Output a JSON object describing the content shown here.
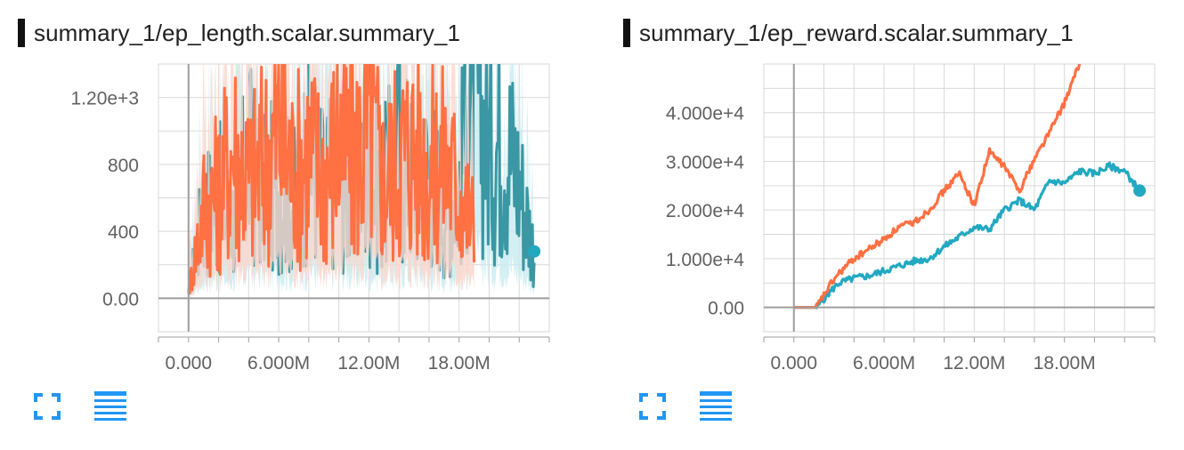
{
  "colors": {
    "series_orange": "#ff7043",
    "series_teal": "#22a9c1",
    "series_teal_dark": "#3a97a3",
    "band_orange": "#fcd6cb",
    "band_teal": "#c8ebf0",
    "grid": "#d9d9d9",
    "axis": "#9e9e9e",
    "icon_blue": "#2196f3"
  },
  "icons": {
    "expand": "expand-icon",
    "data_table": "list-lines-icon"
  },
  "chart_data": [
    {
      "type": "line",
      "title": "summary_1/ep_length.scalar.summary_1",
      "xlabel": "",
      "ylabel": "",
      "x_ticks": [
        "0.000",
        "6.000M",
        "12.00M",
        "18.00M"
      ],
      "y_ticks": [
        "0.00",
        "400",
        "800",
        "1.20e+3"
      ],
      "xlim": [
        -2000000,
        24000000
      ],
      "ylim": [
        -200,
        1400
      ],
      "grid": true,
      "legend": "none",
      "series": [
        {
          "color": "#22a9c1",
          "x": [
            0,
            1000000,
            2000000,
            3000000,
            4000000,
            5000000,
            6000000,
            7000000,
            8000000,
            9000000,
            10000000,
            11000000,
            12000000,
            13000000,
            14000000,
            15000000,
            16000000,
            17000000,
            18000000,
            19000000,
            20000000,
            21000000,
            22000000,
            23000000
          ],
          "y": [
            30,
            520,
            600,
            480,
            820,
            620,
            700,
            580,
            900,
            650,
            780,
            600,
            720,
            640,
            880,
            700,
            750,
            600,
            680,
            1300,
            900,
            1000,
            700,
            280
          ]
        },
        {
          "color": "#ff7043",
          "x": [
            0,
            1000000,
            2000000,
            3000000,
            4000000,
            5000000,
            6000000,
            7000000,
            8000000,
            9000000,
            10000000,
            11000000,
            12000000,
            13000000,
            14000000,
            15000000,
            16000000,
            17000000,
            18000000,
            19000000
          ],
          "y": [
            40,
            550,
            640,
            900,
            700,
            820,
            1000,
            760,
            880,
            720,
            950,
            800,
            1050,
            700,
            860,
            900,
            780,
            820,
            650,
            420
          ]
        }
      ]
    },
    {
      "type": "line",
      "title": "summary_1/ep_reward.scalar.summary_1",
      "xlabel": "",
      "ylabel": "",
      "x_ticks": [
        "0.000",
        "6.000M",
        "12.00M",
        "18.00M"
      ],
      "y_ticks": [
        "0.00",
        "1.000e+4",
        "2.000e+4",
        "3.000e+4",
        "4.000e+4"
      ],
      "xlim": [
        -2000000,
        24000000
      ],
      "ylim": [
        -5000,
        50000
      ],
      "grid": true,
      "legend": "none",
      "series": [
        {
          "color": "#22a9c1",
          "x": [
            0,
            1000000,
            1500000,
            2500000,
            3000000,
            4000000,
            5000000,
            6000000,
            7000000,
            8000000,
            9000000,
            10000000,
            11000000,
            12000000,
            13000000,
            14000000,
            15000000,
            16000000,
            17000000,
            18000000,
            19000000,
            20000000,
            21000000,
            22000000,
            23000000
          ],
          "y": [
            0,
            0,
            0,
            3500,
            5000,
            6000,
            6500,
            7500,
            8500,
            9500,
            10000,
            12500,
            14500,
            16500,
            16000,
            20000,
            22000,
            20000,
            26000,
            25500,
            28000,
            27500,
            29000,
            28000,
            24000
          ]
        },
        {
          "color": "#ff7043",
          "x": [
            0,
            1000000,
            1500000,
            2500000,
            3000000,
            4000000,
            5000000,
            6000000,
            7000000,
            8000000,
            9000000,
            10000000,
            11000000,
            12000000,
            13000000,
            14000000,
            15000000,
            16000000,
            17000000,
            18000000,
            19000000
          ],
          "y": [
            0,
            0,
            0,
            5000,
            7000,
            10000,
            12000,
            14000,
            16500,
            17500,
            20000,
            24000,
            27500,
            21000,
            32000,
            29000,
            24000,
            30500,
            36000,
            42000,
            50000
          ]
        }
      ]
    }
  ]
}
